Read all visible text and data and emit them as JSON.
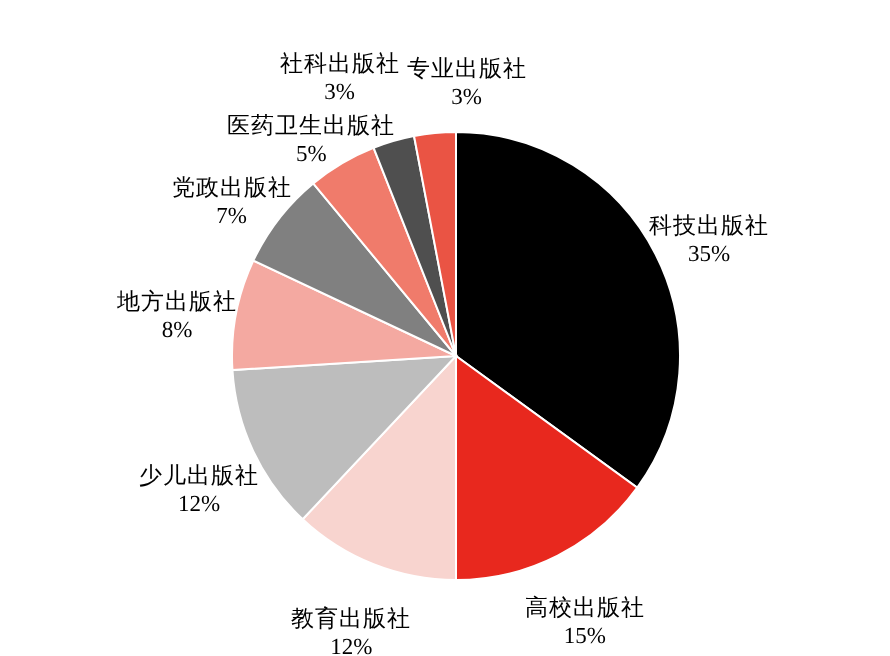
{
  "chart_data": {
    "type": "pie",
    "categories": [
      "科技出版社",
      "高校出版社",
      "教育出版社",
      "少儿出版社",
      "地方出版社",
      "党政出版社",
      "医药卫生出版社",
      "社科出版社",
      "专业出版社"
    ],
    "values": [
      35,
      15,
      12,
      12,
      8,
      7,
      5,
      3,
      3
    ],
    "value_labels": [
      "35%",
      "15%",
      "12%",
      "12%",
      "8%",
      "7%",
      "5%",
      "3%",
      "3%"
    ],
    "colors": [
      "#000000",
      "#e8281e",
      "#f8d4cf",
      "#bdbdbd",
      "#f4a9a1",
      "#808080",
      "#f07b6b",
      "#4f4f4f",
      "#ea5444"
    ]
  }
}
